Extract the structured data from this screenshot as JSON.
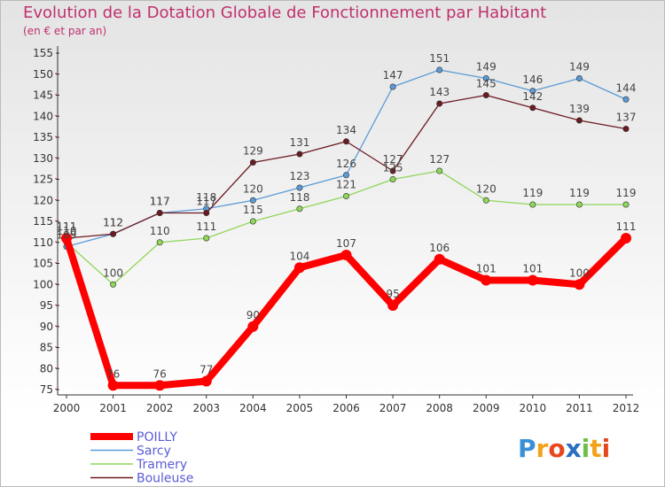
{
  "chart_data": {
    "type": "line",
    "title": "Evolution de la Dotation Globale de Fonctionnement par Habitant",
    "subtitle": "(en € et par an)",
    "xlabel": "",
    "ylabel": "",
    "ylim": [
      75,
      155
    ],
    "yticks": [
      75,
      80,
      85,
      90,
      95,
      100,
      105,
      110,
      115,
      120,
      125,
      130,
      135,
      140,
      145,
      150,
      155
    ],
    "categories": [
      "2000",
      "2001",
      "2002",
      "2003",
      "2004",
      "2005",
      "2006",
      "2007",
      "2008",
      "2009",
      "2010",
      "2011",
      "2012"
    ],
    "series": [
      {
        "name": "Sarcy",
        "color": "#5b9bd5",
        "values": [
          109,
          112,
          117,
          118,
          120,
          123,
          126,
          147,
          151,
          149,
          146,
          149,
          144
        ]
      },
      {
        "name": "Tramery",
        "color": "#8fd65a",
        "values": [
          110,
          100,
          110,
          111,
          115,
          118,
          121,
          125,
          127,
          120,
          119,
          119,
          119
        ]
      },
      {
        "name": "Bouleuse",
        "color": "#6b1a22",
        "values": [
          111,
          112,
          117,
          117,
          129,
          131,
          134,
          127,
          143,
          145,
          142,
          139,
          137
        ]
      },
      {
        "name": "POILLY",
        "color": "#ff0000",
        "values": [
          111,
          76,
          76,
          77,
          90,
          104,
          107,
          95,
          106,
          101,
          101,
          100,
          111
        ]
      }
    ],
    "legend_order": [
      "POILLY",
      "Sarcy",
      "Tramery",
      "Bouleuse"
    ],
    "legend_position": "bottom-left",
    "grid": false
  },
  "logo": {
    "letters": [
      "P",
      "r",
      "o",
      "x",
      "i",
      "t",
      "i"
    ],
    "colors": [
      "#3b8fd6",
      "#f2a31b",
      "#e8471e",
      "#2a6fc0",
      "#6cc04a",
      "#f2a31b",
      "#e8471e"
    ]
  }
}
